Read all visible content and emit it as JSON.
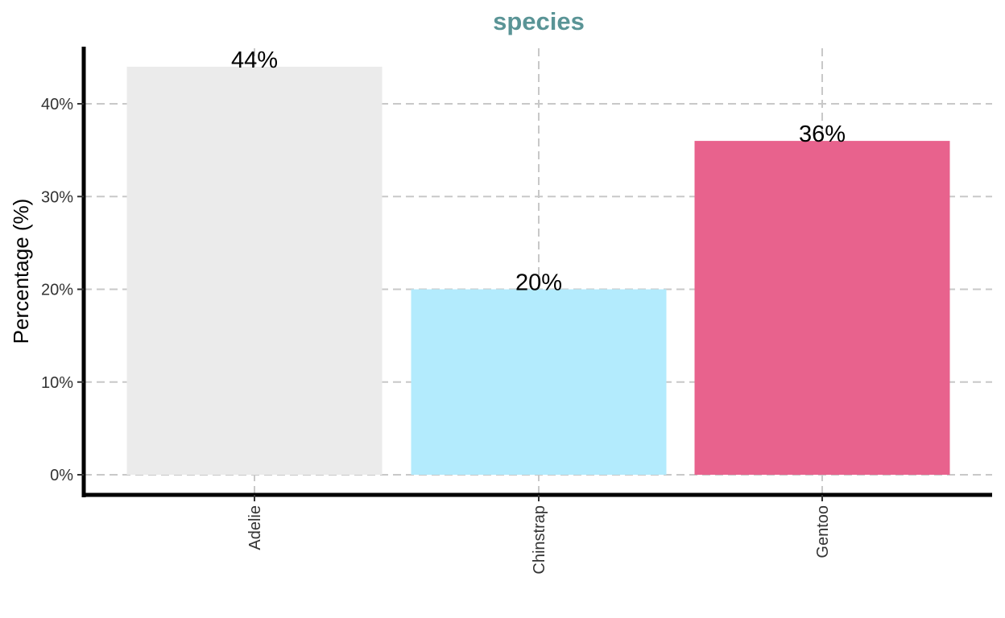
{
  "chart_data": {
    "type": "bar",
    "title": "species",
    "xlabel": "",
    "ylabel": "Percentage (%)",
    "categories": [
      "Adelie",
      "Chinstrap",
      "Gentoo"
    ],
    "values": [
      44,
      20,
      36
    ],
    "data_labels": [
      "44%",
      "20%",
      "36%"
    ],
    "colors": [
      "#EBEBEB",
      "#B3EBFD",
      "#E8628D"
    ],
    "ylim": [
      0,
      46
    ],
    "yticks": [
      0,
      10,
      20,
      30,
      40
    ],
    "ytick_labels": [
      "0%",
      "10%",
      "20%",
      "30%",
      "40%"
    ],
    "grid": true,
    "grid_style": "dashed",
    "grid_color": "#C8C8C8",
    "title_color": "#5A9496",
    "legend": "none"
  }
}
